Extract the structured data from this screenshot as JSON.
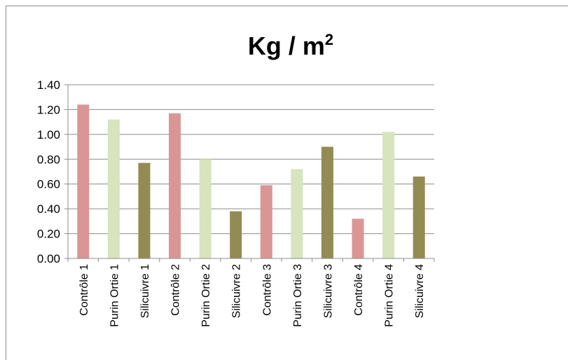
{
  "chart_data": {
    "type": "bar",
    "title": "Kg / m",
    "title_superscript": "2",
    "xlabel": "",
    "ylabel": "",
    "ylim": [
      0,
      1.4
    ],
    "ytick_step": 0.2,
    "ytick_labels": [
      "0.00",
      "0.20",
      "0.40",
      "0.60",
      "0.80",
      "1.00",
      "1.20",
      "1.40"
    ],
    "grid": true,
    "legend": "none",
    "categories": [
      "Contrôle 1",
      "Purin Ortie 1",
      "Silicuivre 1",
      "Contrôle 2",
      "Purin Ortie 2",
      "Silicuivre 2",
      "Contrôle 3",
      "Purin Ortie 3",
      "Silicuivre 3",
      "Contrôle 4",
      "Purin Ortie 4",
      "Silicuivre 4"
    ],
    "values": [
      1.24,
      1.12,
      0.77,
      1.17,
      0.8,
      0.38,
      0.59,
      0.72,
      0.9,
      0.32,
      1.02,
      0.66
    ],
    "bar_colors": [
      "#da9694",
      "#d7e4bc",
      "#948a54",
      "#da9694",
      "#d7e4bc",
      "#948a54",
      "#da9694",
      "#d7e4bc",
      "#948a54",
      "#da9694",
      "#d7e4bc",
      "#948a54"
    ]
  }
}
